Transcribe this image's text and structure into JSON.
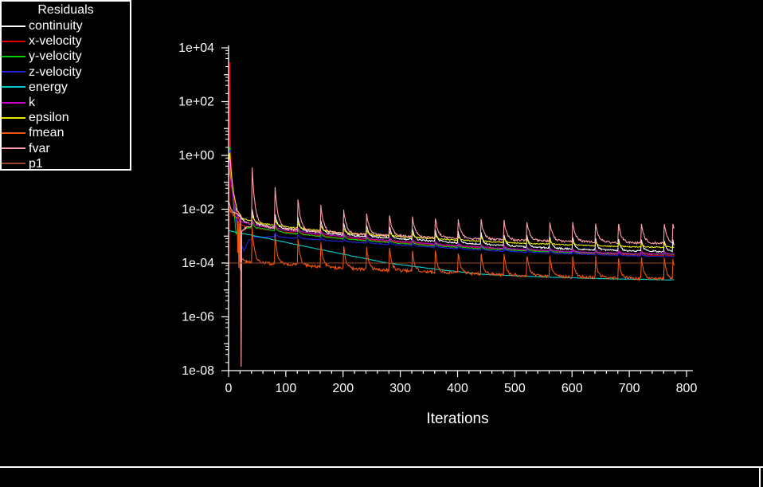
{
  "window": {
    "kind": "residual-monitor-graphics-window"
  },
  "legend": {
    "title": "Residuals",
    "items": [
      {
        "label": "continuity",
        "color": "#ffffff"
      },
      {
        "label": "x-velocity",
        "color": "#dd0000"
      },
      {
        "label": "y-velocity",
        "color": "#00cc00"
      },
      {
        "label": "z-velocity",
        "color": "#2222dd"
      },
      {
        "label": "energy",
        "color": "#00cccc"
      },
      {
        "label": "k",
        "color": "#cc00cc"
      },
      {
        "label": "epsilon",
        "color": "#e8e800"
      },
      {
        "label": "fmean",
        "color": "#ee5511"
      },
      {
        "label": "fvar",
        "color": "#ffa0a8"
      },
      {
        "label": "p1",
        "color": "#994422"
      }
    ]
  },
  "chart_data": {
    "type": "line",
    "title": "Residuals",
    "xlabel": "Iterations",
    "x_axis": {
      "min": 0,
      "max": 800,
      "major_step": 100,
      "minor_step": 20,
      "tick_labels": [
        "0",
        "100",
        "200",
        "300",
        "400",
        "500",
        "600",
        "700",
        "800"
      ]
    },
    "y_axis": {
      "scale": "log10",
      "min_log": -8,
      "max_log": 4,
      "labeled_decades": [
        4,
        2,
        0,
        -2,
        -4,
        -6,
        -8
      ],
      "tick_labels": [
        "1e+04",
        "1e+02",
        "1e+00",
        "1e-02",
        "1e-04",
        "1e-06",
        "1e-08"
      ]
    },
    "grid": false,
    "legend_position": "top-left",
    "last_iteration": 778,
    "spike_period": 40,
    "axis_color": "#ffffff",
    "text_color": "#ffffff",
    "series": [
      {
        "name": "continuity",
        "color": "#ffffff",
        "noise": 0.03,
        "end": 778,
        "anchors": [
          [
            1,
            0.1
          ],
          [
            3,
            -0.7
          ],
          [
            8,
            -1.6
          ],
          [
            15,
            -2.2
          ],
          [
            30,
            -2.5
          ],
          [
            50,
            -2.58
          ],
          [
            100,
            -2.72
          ],
          [
            150,
            -2.84
          ],
          [
            200,
            -2.95
          ],
          [
            300,
            -3.1
          ],
          [
            400,
            -3.25
          ],
          [
            500,
            -3.38
          ],
          [
            600,
            -3.48
          ],
          [
            700,
            -3.55
          ],
          [
            778,
            -3.58
          ]
        ],
        "spikes": {
          "start": 40,
          "stop": 760,
          "step": 40,
          "extra": [
            775
          ],
          "amp_base": 0.42,
          "amp_extra": 0.1,
          "amp_tau": 100,
          "rise": 1.2,
          "decay": 3.5
        }
      },
      {
        "name": "x-velocity",
        "color": "#dd0000",
        "noise": 0.015,
        "end": 778,
        "anchors": [
          [
            1,
            -4.2
          ],
          [
            2,
            3.45
          ],
          [
            3,
            0.5
          ],
          [
            6,
            -1.0
          ],
          [
            12,
            -2.0
          ],
          [
            20,
            -2.55
          ],
          [
            30,
            -2.65
          ],
          [
            50,
            -2.72
          ],
          [
            100,
            -2.85
          ],
          [
            200,
            -3.08
          ],
          [
            300,
            -3.24
          ],
          [
            400,
            -3.4
          ],
          [
            500,
            -3.52
          ],
          [
            600,
            -3.62
          ],
          [
            700,
            -3.7
          ],
          [
            778,
            -3.73
          ]
        ],
        "spikes": {
          "start": 40,
          "stop": 760,
          "step": 40,
          "extra": [],
          "amp_base": 0.12,
          "amp_extra": 0.1,
          "amp_tau": 100,
          "rise": 1.2,
          "decay": 3
        }
      },
      {
        "name": "y-velocity",
        "color": "#00cc00",
        "noise": 0.015,
        "end": 778,
        "anchors": [
          [
            0,
            -0.2
          ],
          [
            2,
            0.3
          ],
          [
            5,
            -0.9
          ],
          [
            13,
            -2.92
          ],
          [
            22,
            -2.8
          ],
          [
            35,
            -2.68
          ],
          [
            60,
            -2.72
          ],
          [
            100,
            -2.88
          ],
          [
            200,
            -3.1
          ],
          [
            300,
            -3.27
          ],
          [
            400,
            -3.42
          ],
          [
            500,
            -3.53
          ],
          [
            600,
            -3.61
          ],
          [
            700,
            -3.66
          ],
          [
            778,
            -3.68
          ]
        ],
        "spikes": {
          "start": 40,
          "stop": 760,
          "step": 40,
          "extra": [],
          "amp_base": 0.12,
          "amp_extra": 0.1,
          "amp_tau": 100,
          "rise": 1.2,
          "decay": 3
        }
      },
      {
        "name": "z-velocity",
        "color": "#2222dd",
        "noise": 0.015,
        "end": 778,
        "anchors": [
          [
            0,
            -0.3
          ],
          [
            2,
            0.2
          ],
          [
            6,
            -1.2
          ],
          [
            14,
            -2.5
          ],
          [
            22,
            -3.3
          ],
          [
            27,
            -3.55
          ],
          [
            35,
            -3.15
          ],
          [
            50,
            -3.05
          ],
          [
            80,
            -3.02
          ],
          [
            120,
            -3.08
          ],
          [
            200,
            -3.2
          ],
          [
            300,
            -3.33
          ],
          [
            400,
            -3.47
          ],
          [
            500,
            -3.58
          ],
          [
            600,
            -3.66
          ],
          [
            700,
            -3.73
          ],
          [
            778,
            -3.76
          ]
        ],
        "spikes": {
          "start": 40,
          "stop": 760,
          "step": 40,
          "extra": [],
          "amp_base": 0.1,
          "amp_extra": 0.08,
          "amp_tau": 100,
          "rise": 1.2,
          "decay": 3
        }
      },
      {
        "name": "energy",
        "color": "#00cccc",
        "noise": 0.008,
        "end": 778,
        "anchors": [
          [
            0,
            -2.8
          ],
          [
            60,
            -3.05
          ],
          [
            122,
            -3.33
          ],
          [
            200,
            -3.67
          ],
          [
            278,
            -4.0
          ],
          [
            366,
            -4.24
          ],
          [
            445,
            -4.42
          ],
          [
            550,
            -4.52
          ],
          [
            650,
            -4.58
          ],
          [
            778,
            -4.63
          ]
        ]
      },
      {
        "name": "k",
        "color": "#cc00cc",
        "noise": 0.015,
        "end": 778,
        "anchors": [
          [
            0,
            -0.6
          ],
          [
            2,
            -0.1
          ],
          [
            5,
            -1.1
          ],
          [
            10,
            -1.9
          ],
          [
            20,
            -2.45
          ],
          [
            50,
            -2.62
          ],
          [
            100,
            -2.78
          ],
          [
            200,
            -3.02
          ],
          [
            300,
            -3.2
          ],
          [
            400,
            -3.36
          ],
          [
            500,
            -3.48
          ],
          [
            600,
            -3.58
          ],
          [
            700,
            -3.65
          ],
          [
            778,
            -3.67
          ]
        ],
        "spikes": {
          "start": 40,
          "stop": 760,
          "step": 40,
          "extra": [],
          "amp_base": 0.1,
          "amp_extra": 0.08,
          "amp_tau": 100,
          "rise": 1.2,
          "decay": 3
        }
      },
      {
        "name": "epsilon",
        "color": "#e8e800",
        "noise": 0.02,
        "end": 778,
        "anchors": [
          [
            0,
            -0.3
          ],
          [
            2,
            0.1
          ],
          [
            4,
            -0.5
          ],
          [
            8,
            -1.3
          ],
          [
            15,
            -2.05
          ],
          [
            25,
            -2.35
          ],
          [
            50,
            -2.5
          ],
          [
            100,
            -2.65
          ],
          [
            200,
            -2.88
          ],
          [
            300,
            -3.02
          ],
          [
            400,
            -3.15
          ],
          [
            500,
            -3.25
          ],
          [
            600,
            -3.33
          ],
          [
            700,
            -3.4
          ],
          [
            778,
            -3.42
          ]
        ],
        "spikes": {
          "start": 40,
          "stop": 760,
          "step": 40,
          "extra": [],
          "amp_base": 0.15,
          "amp_extra": 0.1,
          "amp_tau": 100,
          "rise": 1.2,
          "decay": 3
        }
      },
      {
        "name": "fmean",
        "color": "#ee5511",
        "noise": 0.055,
        "end": 778,
        "anchors": [
          [
            0,
            -1.9
          ],
          [
            4,
            -2.1
          ],
          [
            10,
            -2.25
          ],
          [
            15,
            -2.3
          ],
          [
            16,
            -3.6
          ],
          [
            17,
            -2.45
          ],
          [
            18,
            -4.15
          ],
          [
            19,
            -2.55
          ],
          [
            20,
            -4.3
          ],
          [
            21,
            -2.6
          ],
          [
            22,
            -3.85
          ],
          [
            30,
            -3.95
          ],
          [
            60,
            -4.0
          ],
          [
            115,
            -4.07
          ],
          [
            200,
            -4.2
          ],
          [
            300,
            -4.28
          ],
          [
            400,
            -4.37
          ],
          [
            500,
            -4.45
          ],
          [
            600,
            -4.52
          ],
          [
            700,
            -4.57
          ],
          [
            778,
            -4.6
          ]
        ],
        "spikes": {
          "start": 40,
          "stop": 760,
          "step": 40,
          "extra": [
            775
          ],
          "amp_base": 0.75,
          "amp_extra": 0.5,
          "amp_tau": 100,
          "rise": 1.2,
          "decay": 4
        }
      },
      {
        "name": "fvar",
        "color": "#ffa0a8",
        "noise": 0.04,
        "end": 778,
        "anchors": [
          [
            0,
            -1.7
          ],
          [
            4,
            -2.0
          ],
          [
            10,
            -2.15
          ],
          [
            20,
            -2.2
          ],
          [
            21,
            -2.18
          ],
          [
            22,
            -7.85
          ],
          [
            23,
            -2.8
          ],
          [
            30,
            -2.68
          ],
          [
            50,
            -2.62
          ],
          [
            100,
            -2.75
          ],
          [
            200,
            -2.9
          ],
          [
            300,
            -3.0
          ],
          [
            400,
            -3.08
          ],
          [
            500,
            -3.15
          ],
          [
            600,
            -3.2
          ],
          [
            700,
            -3.25
          ],
          [
            778,
            -3.27
          ]
        ],
        "spikes": {
          "start": 40,
          "stop": 760,
          "step": 40,
          "extra": [
            775
          ],
          "amp_base": 0.7,
          "amp_extra": 1.5,
          "amp_tau": 70,
          "rise": 1.2,
          "decay": 5
        }
      },
      {
        "name": "p1",
        "color": "#994422",
        "noise": 0.003,
        "end": 778,
        "anchors": [
          [
            0,
            -4.0
          ],
          [
            778,
            -4.0
          ]
        ]
      }
    ]
  }
}
